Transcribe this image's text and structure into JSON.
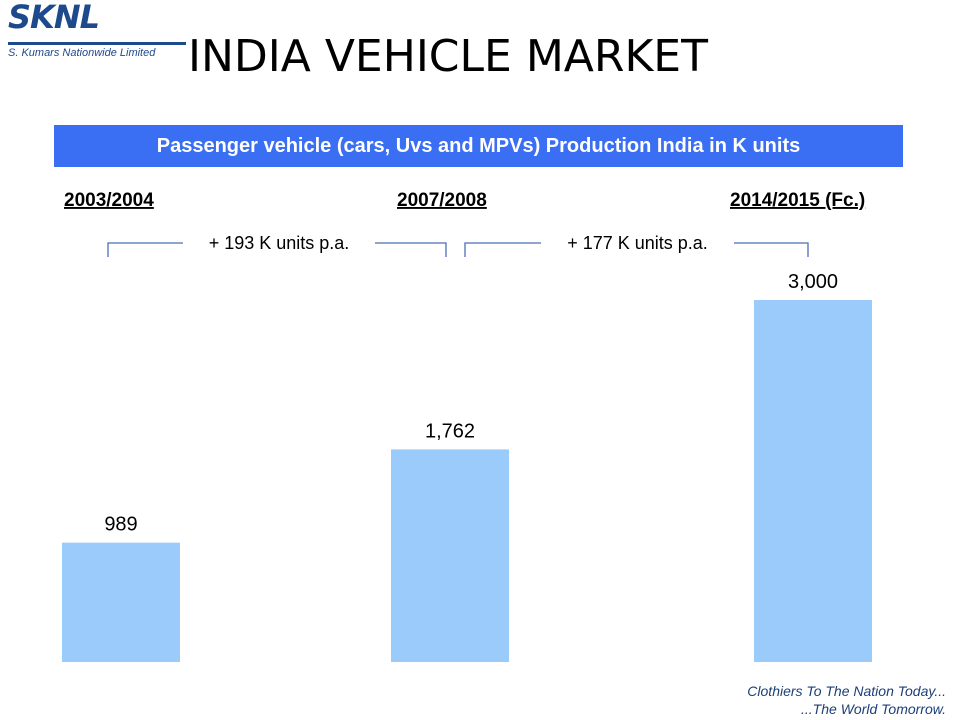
{
  "logo": {
    "brand": "SKNL",
    "tagline": "S. Kumars Nationwide Limited"
  },
  "slide_title": "INDIA VEHICLE MARKET",
  "footer": {
    "line1": "Clothiers To The Nation Today...",
    "line2": "...The World Tomorrow."
  },
  "colors": {
    "title_bar": "#3a6ff3",
    "bar": "#9bcbfb",
    "logo_blue": "#1d4a8c"
  },
  "chart_data": {
    "type": "bar",
    "title": "Passenger vehicle (cars, Uvs and MPVs) Production India in K units",
    "categories": [
      "2003/2004",
      "2007/2008",
      "2014/2015  (Fc.)"
    ],
    "values": [
      989,
      1762,
      3000
    ],
    "value_labels": [
      "989",
      "1,762",
      "3,000"
    ],
    "annotations": [
      {
        "text": "+ 193 K units p.a.",
        "from": "2003/2004",
        "to": "2007/2008"
      },
      {
        "text": "+ 177 K units p.a.",
        "from": "2007/2008",
        "to": "2014/2015  (Fc.)"
      }
    ],
    "xlabel": "",
    "ylabel": "",
    "ylim": [
      0,
      3000
    ],
    "grid": false,
    "legend": "none"
  }
}
